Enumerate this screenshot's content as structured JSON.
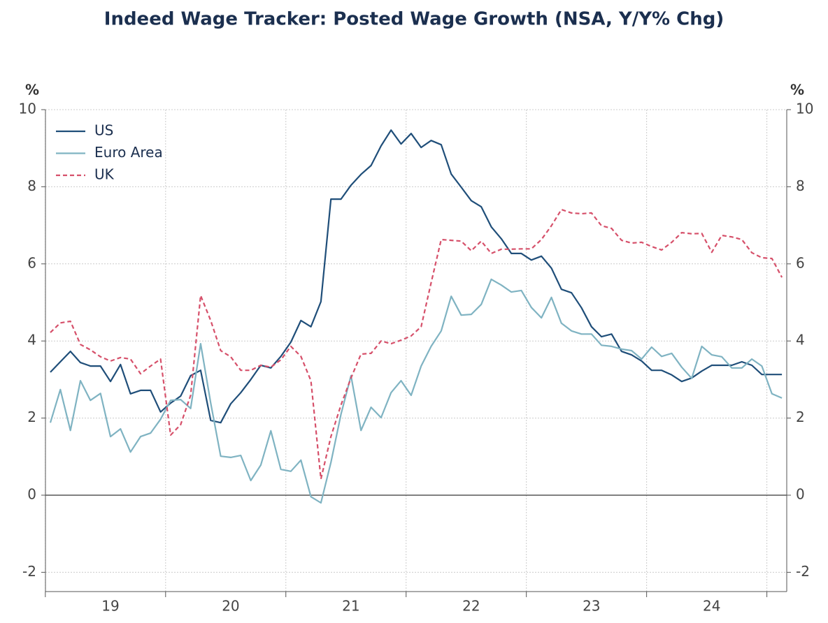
{
  "chart_data": {
    "type": "line",
    "title": "Indeed Wage Tracker: Posted Wage Growth (NSA, Y/Y% Chg)",
    "ylabel": "%",
    "y2label": "%",
    "categories": [
      null,
      null,
      null,
      null,
      null,
      null,
      "19",
      null,
      null,
      null,
      null,
      null,
      null,
      null,
      null,
      null,
      null,
      null,
      "20",
      null,
      null,
      null,
      null,
      null,
      null,
      null,
      null,
      null,
      null,
      null,
      "21",
      null,
      null,
      null,
      null,
      null,
      null,
      null,
      null,
      null,
      null,
      null,
      "22",
      null,
      null,
      null,
      null,
      null,
      null,
      null,
      null,
      null,
      null,
      null,
      "23",
      null,
      null,
      null,
      null,
      null,
      null,
      null,
      null,
      null,
      null,
      null,
      "24",
      null,
      null,
      null,
      null,
      null,
      null,
      null
    ],
    "series": [
      {
        "name": "US",
        "color": "#1f4e79",
        "dashed": false,
        "values": [
          3.19,
          3.46,
          3.73,
          3.44,
          3.35,
          3.35,
          2.95,
          3.39,
          2.63,
          2.72,
          2.72,
          2.16,
          2.39,
          2.57,
          3.1,
          3.24,
          1.94,
          1.88,
          2.37,
          2.66,
          3.0,
          3.37,
          3.3,
          3.6,
          3.97,
          4.53,
          4.37,
          5.02,
          7.68,
          7.68,
          8.04,
          8.32,
          8.55,
          9.06,
          9.47,
          9.11,
          9.38,
          9.02,
          9.2,
          9.09,
          8.33,
          7.99,
          7.64,
          7.48,
          6.96,
          6.65,
          6.27,
          6.27,
          6.1,
          6.2,
          5.89,
          5.34,
          5.25,
          4.86,
          4.37,
          4.11,
          4.18,
          3.73,
          3.64,
          3.48,
          3.24,
          3.24,
          3.12,
          2.95,
          3.04,
          3.22,
          3.37,
          3.37,
          3.37,
          3.46,
          3.37,
          3.13,
          3.13,
          3.13
        ]
      },
      {
        "name": "Euro Area",
        "color": "#7fb3c2",
        "dashed": false,
        "values": [
          1.88,
          2.74,
          1.68,
          2.97,
          2.46,
          2.64,
          1.52,
          1.72,
          1.12,
          1.52,
          1.61,
          1.97,
          2.46,
          2.48,
          2.25,
          3.93,
          2.39,
          1.01,
          0.98,
          1.03,
          0.38,
          0.78,
          1.67,
          0.67,
          0.62,
          0.91,
          -0.04,
          -0.2,
          0.85,
          2.1,
          3.1,
          1.68,
          2.28,
          2.01,
          2.66,
          2.97,
          2.59,
          3.35,
          3.86,
          4.26,
          5.16,
          4.67,
          4.69,
          4.95,
          5.6,
          5.45,
          5.27,
          5.31,
          4.87,
          4.6,
          5.13,
          4.46,
          4.26,
          4.18,
          4.18,
          3.89,
          3.86,
          3.79,
          3.75,
          3.53,
          3.84,
          3.6,
          3.68,
          3.32,
          3.03,
          3.86,
          3.64,
          3.59,
          3.3,
          3.3,
          3.53,
          3.35,
          2.63,
          2.52
        ]
      },
      {
        "name": "UK",
        "color": "#d6506a",
        "dashed": true,
        "values": [
          4.22,
          4.47,
          4.51,
          3.91,
          3.77,
          3.59,
          3.48,
          3.57,
          3.53,
          3.15,
          3.35,
          3.53,
          1.56,
          1.83,
          2.59,
          5.18,
          4.53,
          3.75,
          3.59,
          3.24,
          3.24,
          3.37,
          3.32,
          3.51,
          3.86,
          3.6,
          2.97,
          0.42,
          1.52,
          2.34,
          3.04,
          3.66,
          3.68,
          4.0,
          3.93,
          4.02,
          4.13,
          4.37,
          5.51,
          6.63,
          6.61,
          6.59,
          6.34,
          6.59,
          6.27,
          6.38,
          6.38,
          6.39,
          6.39,
          6.63,
          6.99,
          7.41,
          7.32,
          7.3,
          7.32,
          6.99,
          6.92,
          6.61,
          6.54,
          6.56,
          6.45,
          6.36,
          6.56,
          6.81,
          6.78,
          6.79,
          6.3,
          6.74,
          6.7,
          6.63,
          6.29,
          6.16,
          6.14,
          5.65
        ]
      }
    ],
    "ylim": [
      -2.5,
      10
    ],
    "yticks": [
      -2,
      0,
      2,
      4,
      6,
      8,
      10
    ],
    "y2lim": [
      -2.5,
      10
    ],
    "y2ticks": [
      -2,
      0,
      2,
      4,
      6,
      8,
      10
    ],
    "grid": true,
    "legend": "upper-left"
  }
}
